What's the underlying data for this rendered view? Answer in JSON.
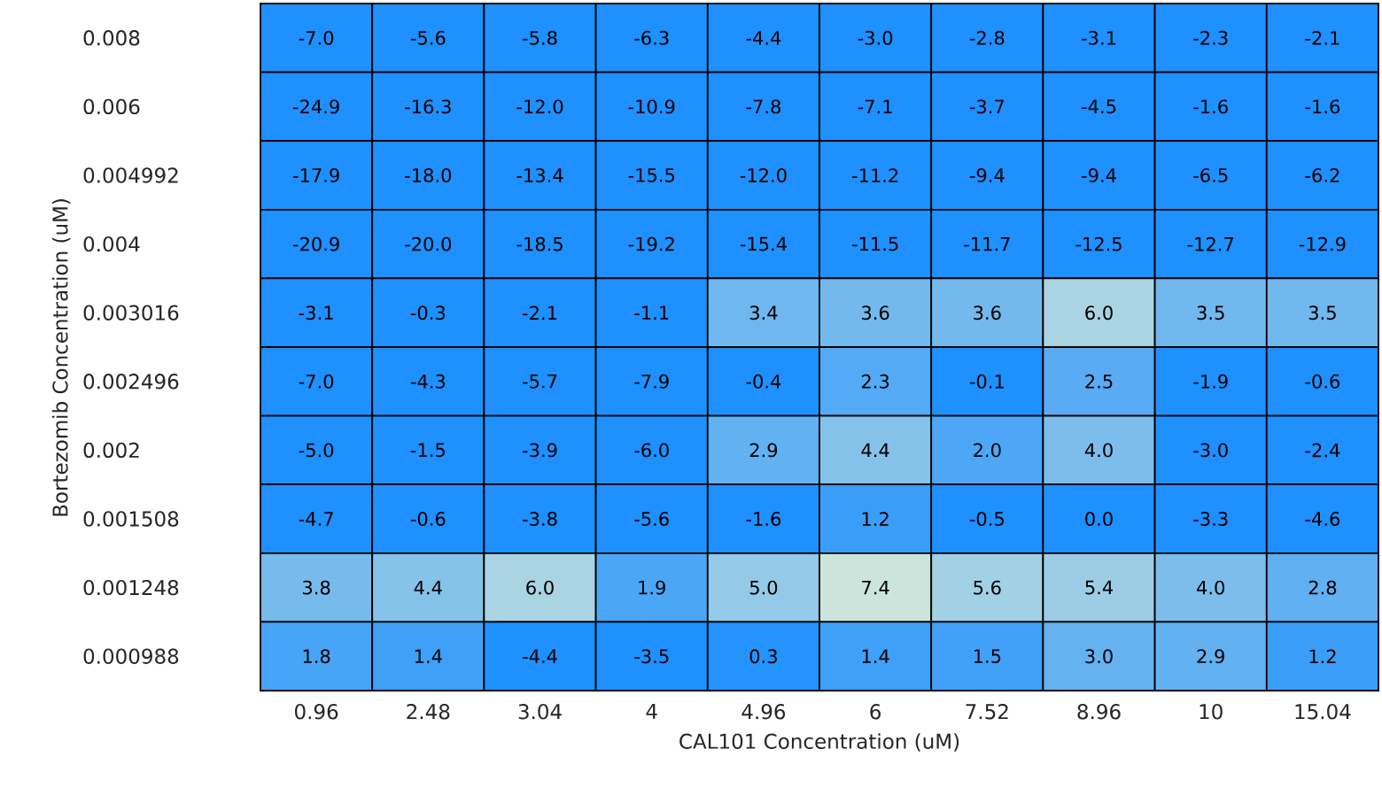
{
  "chart_data": {
    "type": "heatmap",
    "xlabel": "CAL101 Concentration (uM)",
    "ylabel": "Bortezomib Concentration (uM)",
    "categories": [
      "0.96",
      "2.48",
      "3.04",
      "4",
      "4.96",
      "6",
      "7.52",
      "8.96",
      "10",
      "15.04"
    ],
    "y_categories": [
      "0.008",
      "0.006",
      "0.004992",
      "0.004",
      "0.003016",
      "0.002496",
      "0.002",
      "0.001508",
      "0.001248",
      "0.000988"
    ],
    "cells": [
      [
        -7.0,
        -5.6,
        -5.8,
        -6.3,
        -4.4,
        -3.0,
        -2.8,
        -3.1,
        -2.3,
        -2.1
      ],
      [
        -24.9,
        -16.3,
        -12.0,
        -10.9,
        -7.8,
        -7.1,
        -3.7,
        -4.5,
        -1.6,
        -1.6
      ],
      [
        -17.9,
        -18.0,
        -13.4,
        -15.5,
        -12.0,
        -11.2,
        -9.4,
        -9.4,
        -6.5,
        -6.2
      ],
      [
        -20.9,
        -20.0,
        -18.5,
        -19.2,
        -15.4,
        -11.5,
        -11.7,
        -12.5,
        -12.7,
        -12.9
      ],
      [
        -3.1,
        -0.3,
        -2.1,
        -1.1,
        3.4,
        3.6,
        3.6,
        6.0,
        3.5,
        3.5
      ],
      [
        -7.0,
        -4.3,
        -5.7,
        -7.9,
        -0.4,
        2.3,
        -0.1,
        2.5,
        -1.9,
        -0.6
      ],
      [
        -5.0,
        -1.5,
        -3.9,
        -6.0,
        2.9,
        4.4,
        2.0,
        4.0,
        -3.0,
        -2.4
      ],
      [
        -4.7,
        -0.6,
        -3.8,
        -5.6,
        -1.6,
        1.2,
        -0.5,
        0.0,
        -3.3,
        -4.6
      ],
      [
        3.8,
        4.4,
        6.0,
        1.9,
        5.0,
        7.4,
        5.6,
        5.4,
        4.0,
        2.8
      ],
      [
        1.8,
        1.4,
        -4.4,
        -3.5,
        0.3,
        1.4,
        1.5,
        3.0,
        2.9,
        1.2
      ]
    ],
    "cell_labels": [
      [
        "-7.0",
        "-5.6",
        "-5.8",
        "-6.3",
        "-4.4",
        "-3.0",
        "-2.8",
        "-3.1",
        "-2.3",
        "-2.1"
      ],
      [
        "-24.9",
        "-16.3",
        "-12.0",
        "-10.9",
        "-7.8",
        "-7.1",
        "-3.7",
        "-4.5",
        "-1.6",
        "-1.6"
      ],
      [
        "-17.9",
        "-18.0",
        "-13.4",
        "-15.5",
        "-12.0",
        "-11.2",
        "-9.4",
        "-9.4",
        "-6.5",
        "-6.2"
      ],
      [
        "-20.9",
        "-20.0",
        "-18.5",
        "-19.2",
        "-15.4",
        "-11.5",
        "-11.7",
        "-12.5",
        "-12.7",
        "-12.9"
      ],
      [
        "-3.1",
        "-0.3",
        "-2.1",
        "-1.1",
        "3.4",
        "3.6",
        "3.6",
        "6.0",
        "3.5",
        "3.5"
      ],
      [
        "-7.0",
        "-4.3",
        "-5.7",
        "-7.9",
        "-0.4",
        "2.3",
        "-0.1",
        "2.5",
        "-1.9",
        "-0.6"
      ],
      [
        "-5.0",
        "-1.5",
        "-3.9",
        "-6.0",
        "2.9",
        "4.4",
        "2.0",
        "4.0",
        "-3.0",
        "-2.4"
      ],
      [
        "-4.7",
        "-0.6",
        "-3.8",
        "-5.6",
        "-1.6",
        "1.2",
        "-0.5",
        "0.0",
        "-3.3",
        "-4.6"
      ],
      [
        "3.8",
        "4.4",
        "6.0",
        "1.9",
        "5.0",
        "7.4",
        "5.6",
        "5.4",
        "4.0",
        "2.8"
      ],
      [
        "1.8",
        "1.4",
        "-4.4",
        "-3.5",
        "0.3",
        "1.4",
        "1.5",
        "3.0",
        "2.9",
        "1.2"
      ]
    ]
  }
}
